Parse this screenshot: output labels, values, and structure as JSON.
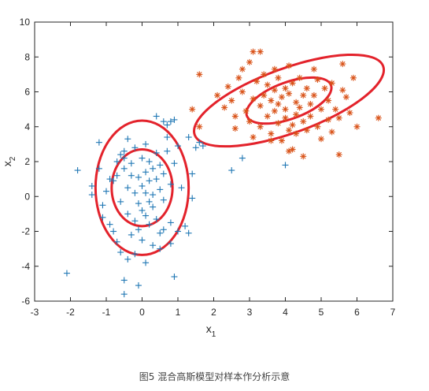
{
  "caption": "图5 混合高斯模型对样本作分析示意",
  "chart_data": {
    "type": "scatter",
    "title": "",
    "xlabel": "x",
    "xlabel_sub": "1",
    "ylabel": "x",
    "ylabel_sub": "2",
    "xlim": [
      -3,
      7
    ],
    "ylim": [
      -6,
      10
    ],
    "xticks": [
      -3,
      -2,
      -1,
      0,
      1,
      2,
      3,
      4,
      5,
      6,
      7
    ],
    "yticks": [
      -6,
      -4,
      -2,
      0,
      2,
      4,
      6,
      8,
      10
    ],
    "grid": false,
    "series": [
      {
        "marker": "plus",
        "color": "#1f77b4",
        "points": [
          [
            -2.1,
            -4.4
          ],
          [
            -1.8,
            1.5
          ],
          [
            -1.4,
            0.6
          ],
          [
            -1.4,
            0.1
          ],
          [
            -1.2,
            3.1
          ],
          [
            -1.2,
            1.6
          ],
          [
            -1.1,
            -0.5
          ],
          [
            -1.1,
            -1.2
          ],
          [
            -1.0,
            0.3
          ],
          [
            -0.9,
            1.0
          ],
          [
            -0.9,
            -1.6
          ],
          [
            -0.8,
            0.9
          ],
          [
            -0.8,
            -2.0
          ],
          [
            -0.7,
            2.0
          ],
          [
            -0.7,
            1.2
          ],
          [
            -0.7,
            -2.6
          ],
          [
            -0.6,
            2.4
          ],
          [
            -0.6,
            -3.2
          ],
          [
            -0.6,
            -0.3
          ],
          [
            -0.5,
            2.6
          ],
          [
            -0.5,
            2.2
          ],
          [
            -0.5,
            1.6
          ],
          [
            -0.5,
            -4.8
          ],
          [
            -0.5,
            -5.6
          ],
          [
            -0.4,
            3.3
          ],
          [
            -0.4,
            0.5
          ],
          [
            -0.4,
            -1.0
          ],
          [
            -0.4,
            -3.6
          ],
          [
            -0.3,
            1.9
          ],
          [
            -0.3,
            1.2
          ],
          [
            -0.3,
            -2.2
          ],
          [
            -0.2,
            2.8
          ],
          [
            -0.2,
            0.2
          ],
          [
            -0.2,
            -1.4
          ],
          [
            -0.2,
            -3.3
          ],
          [
            -0.1,
            1.1
          ],
          [
            -0.1,
            -0.4
          ],
          [
            -0.1,
            -1.9
          ],
          [
            -0.1,
            -5.1
          ],
          [
            0.0,
            2.2
          ],
          [
            0.0,
            0.6
          ],
          [
            0.0,
            -0.8
          ],
          [
            0.0,
            -2.5
          ],
          [
            0.1,
            3.0
          ],
          [
            0.1,
            1.4
          ],
          [
            0.1,
            0.2
          ],
          [
            0.1,
            -1.1
          ],
          [
            0.1,
            -3.8
          ],
          [
            0.2,
            2.0
          ],
          [
            0.2,
            0.9
          ],
          [
            0.2,
            -0.3
          ],
          [
            0.2,
            -1.6
          ],
          [
            0.3,
            1.6
          ],
          [
            0.3,
            0.1
          ],
          [
            0.3,
            -0.6
          ],
          [
            0.3,
            -2.8
          ],
          [
            0.4,
            2.5
          ],
          [
            0.4,
            1.0
          ],
          [
            0.4,
            -1.3
          ],
          [
            0.4,
            4.6
          ],
          [
            0.5,
            1.8
          ],
          [
            0.5,
            0.4
          ],
          [
            0.5,
            -2.1
          ],
          [
            0.5,
            -3.0
          ],
          [
            0.6,
            4.3
          ],
          [
            0.6,
            1.3
          ],
          [
            0.6,
            -0.2
          ],
          [
            0.6,
            -1.9
          ],
          [
            0.7,
            4.1
          ],
          [
            0.7,
            3.4
          ],
          [
            0.7,
            2.6
          ],
          [
            0.8,
            4.3
          ],
          [
            0.8,
            0.7
          ],
          [
            0.8,
            -1.5
          ],
          [
            0.8,
            -2.7
          ],
          [
            0.9,
            4.4
          ],
          [
            0.9,
            1.9
          ],
          [
            0.9,
            -4.6
          ],
          [
            1.0,
            -2.0
          ],
          [
            1.0,
            2.9
          ],
          [
            1.1,
            0.5
          ],
          [
            1.2,
            -1.7
          ],
          [
            1.3,
            3.4
          ],
          [
            1.3,
            -2.1
          ],
          [
            1.4,
            -0.1
          ],
          [
            1.4,
            1.3
          ],
          [
            1.5,
            2.8
          ],
          [
            1.6,
            3.1
          ],
          [
            1.7,
            2.9
          ],
          [
            2.5,
            1.5
          ],
          [
            2.8,
            2.2
          ],
          [
            4.0,
            1.8
          ]
        ]
      },
      {
        "marker": "asterisk",
        "color": "#d95319",
        "points": [
          [
            1.4,
            5.0
          ],
          [
            1.6,
            4.0
          ],
          [
            1.6,
            7.0
          ],
          [
            2.1,
            5.8
          ],
          [
            2.3,
            5.1
          ],
          [
            2.4,
            6.3
          ],
          [
            2.5,
            5.5
          ],
          [
            2.6,
            4.6
          ],
          [
            2.6,
            3.9
          ],
          [
            2.7,
            6.8
          ],
          [
            2.8,
            7.3
          ],
          [
            2.8,
            6.0
          ],
          [
            2.9,
            4.9
          ],
          [
            3.0,
            4.3
          ],
          [
            3.0,
            7.7
          ],
          [
            3.1,
            5.6
          ],
          [
            3.1,
            3.4
          ],
          [
            3.1,
            8.3
          ],
          [
            3.2,
            6.6
          ],
          [
            3.3,
            5.2
          ],
          [
            3.3,
            4.0
          ],
          [
            3.3,
            8.3
          ],
          [
            3.4,
            7.0
          ],
          [
            3.4,
            5.8
          ],
          [
            3.5,
            4.6
          ],
          [
            3.5,
            6.4
          ],
          [
            3.6,
            3.6
          ],
          [
            3.6,
            5.5
          ],
          [
            3.7,
            7.3
          ],
          [
            3.7,
            6.1
          ],
          [
            3.7,
            4.9
          ],
          [
            3.8,
            5.3
          ],
          [
            3.8,
            4.2
          ],
          [
            3.8,
            6.8
          ],
          [
            3.9,
            5.7
          ],
          [
            3.9,
            3.2
          ],
          [
            4.0,
            6.2
          ],
          [
            4.0,
            4.5
          ],
          [
            4.0,
            5.0
          ],
          [
            4.1,
            7.5
          ],
          [
            4.1,
            3.8
          ],
          [
            4.1,
            5.9
          ],
          [
            4.2,
            4.1
          ],
          [
            4.2,
            6.5
          ],
          [
            4.2,
            2.7
          ],
          [
            4.3,
            5.4
          ],
          [
            4.3,
            4.7
          ],
          [
            4.3,
            3.6
          ],
          [
            4.4,
            6.8
          ],
          [
            4.4,
            5.1
          ],
          [
            4.5,
            5.8
          ],
          [
            4.5,
            4.3
          ],
          [
            4.5,
            2.3
          ],
          [
            4.6,
            6.2
          ],
          [
            4.6,
            3.8
          ],
          [
            4.7,
            5.3
          ],
          [
            4.7,
            4.6
          ],
          [
            4.8,
            7.3
          ],
          [
            4.8,
            5.8
          ],
          [
            4.9,
            4.0
          ],
          [
            4.9,
            6.7
          ],
          [
            5.0,
            5.0
          ],
          [
            5.0,
            3.3
          ],
          [
            5.1,
            6.2
          ],
          [
            5.2,
            5.5
          ],
          [
            5.2,
            4.4
          ],
          [
            5.3,
            3.7
          ],
          [
            5.3,
            6.5
          ],
          [
            5.4,
            5.0
          ],
          [
            5.5,
            4.5
          ],
          [
            5.5,
            2.4
          ],
          [
            5.6,
            7.6
          ],
          [
            5.6,
            6.1
          ],
          [
            5.7,
            5.7
          ],
          [
            5.8,
            4.8
          ],
          [
            5.9,
            6.8
          ],
          [
            6.0,
            4.0
          ],
          [
            6.6,
            4.5
          ],
          [
            3.6,
            3.2
          ],
          [
            4.1,
            2.6
          ]
        ]
      }
    ],
    "ellipses": [
      {
        "center": [
          0.0,
          0.5
        ],
        "rx": 0.85,
        "ry": 2.2,
        "angle": 0
      },
      {
        "center": [
          0.0,
          0.5
        ],
        "rx": 1.3,
        "ry": 3.85,
        "angle": 0
      },
      {
        "center": [
          4.1,
          5.5
        ],
        "rx": 1.25,
        "ry": 1.05,
        "angle": -20
      },
      {
        "center": [
          4.1,
          5.5
        ],
        "rx": 2.8,
        "ry": 1.85,
        "angle": -20
      }
    ],
    "ellipse_color": "#e3222b"
  }
}
